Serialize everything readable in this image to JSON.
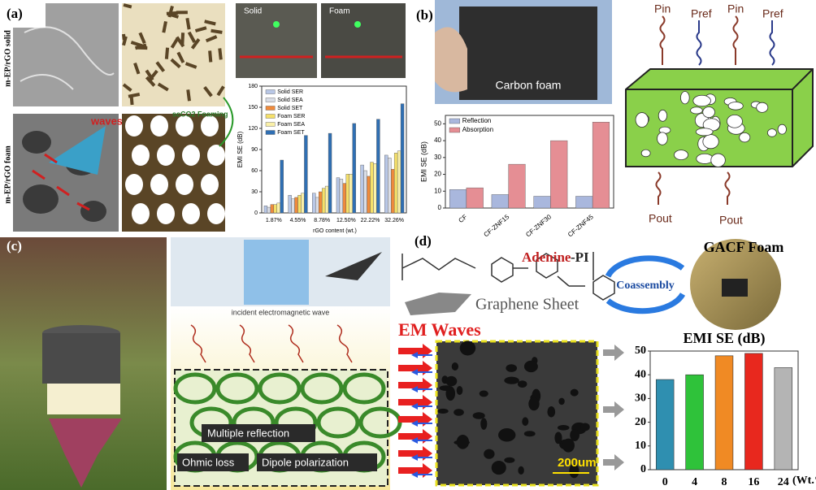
{
  "panels": {
    "a": {
      "label": "(a)",
      "solid": "m-EP/rGO solid",
      "foam": "m-EP/rGO foam",
      "waves": "waves",
      "foaming": "scCO2 Foaming",
      "photo_solid": "Solid",
      "photo_foam": "Foam"
    },
    "b": {
      "label": "(b)",
      "photo": "Carbon foam",
      "p_in_1": "Pin",
      "p_ref_1": "Pref",
      "p_in_2": "Pin",
      "p_ref_2": "Pref",
      "p_out_1": "Pout",
      "p_out_2": "Pout"
    },
    "c": {
      "label": "(c)",
      "incident": "incident electromagnetic wave",
      "multiple": "Multiple reflection",
      "ohmic": "Ohmic loss",
      "dipole": "Dipole polarization"
    },
    "d": {
      "label": "(d)",
      "adenine": "Adenine",
      "pi": "-PI",
      "graphene": "Graphene Sheet",
      "coassembly": "Coassembly",
      "gacf": "GACF Foam",
      "em_waves": "EM Waves",
      "scale": "200um"
    }
  },
  "chart_data": [
    {
      "type": "bar",
      "ylabel": "EMI SE (dB)",
      "xlabel": "rGO content (wt.)",
      "categories": [
        "1.87%",
        "4.55%",
        "8.78%",
        "12.50%",
        "22.22%",
        "32.26%"
      ],
      "series": [
        {
          "name": "Solid SER",
          "color": "#b8c7e6",
          "values": [
            10,
            25,
            28,
            50,
            68,
            82
          ]
        },
        {
          "name": "Solid SEA",
          "color": "#d9dde6",
          "values": [
            8,
            20,
            22,
            48,
            60,
            78
          ]
        },
        {
          "name": "Solid SET",
          "color": "#f08a3c",
          "values": [
            12,
            22,
            30,
            42,
            52,
            62
          ]
        },
        {
          "name": "Foam SER",
          "color": "#f5e06a",
          "values": [
            12,
            25,
            35,
            55,
            72,
            85
          ]
        },
        {
          "name": "Foam SEA",
          "color": "#faf0a8",
          "values": [
            14,
            28,
            38,
            55,
            70,
            88
          ]
        },
        {
          "name": "Foam SET",
          "color": "#2f6fb3",
          "values": [
            75,
            110,
            113,
            127,
            133,
            155
          ]
        }
      ],
      "ylim": [
        0,
        180
      ],
      "yticks": [
        0,
        30,
        60,
        90,
        120,
        150,
        180
      ],
      "legend": "upper left"
    },
    {
      "type": "bar",
      "ylabel": "EMI SE (dB)",
      "categories": [
        "CF",
        "CF-ZNF15",
        "CF-ZNF30",
        "CF-ZNF45"
      ],
      "series": [
        {
          "name": "Reflection",
          "color": "#a9b7dd",
          "values": [
            11,
            8,
            7,
            7
          ]
        },
        {
          "name": "Absorption",
          "color": "#e58e94",
          "values": [
            12,
            26,
            40,
            51
          ]
        }
      ],
      "ylim": [
        0,
        55
      ],
      "yticks": [
        0,
        10,
        20,
        30,
        40,
        50
      ],
      "legend": "upper left"
    },
    {
      "type": "bar",
      "title": "EMI SE (dB)",
      "xlabel": "(Wt.%)",
      "categories": [
        "0",
        "4",
        "8",
        "16",
        "24"
      ],
      "values": [
        38,
        40,
        48,
        49,
        43
      ],
      "colors": [
        "#2f8fb0",
        "#2fc23a",
        "#f08a24",
        "#e8281e",
        "#b4b4b4"
      ],
      "ylim": [
        0,
        50
      ],
      "yticks": [
        0,
        10,
        20,
        30,
        40,
        50
      ]
    }
  ]
}
